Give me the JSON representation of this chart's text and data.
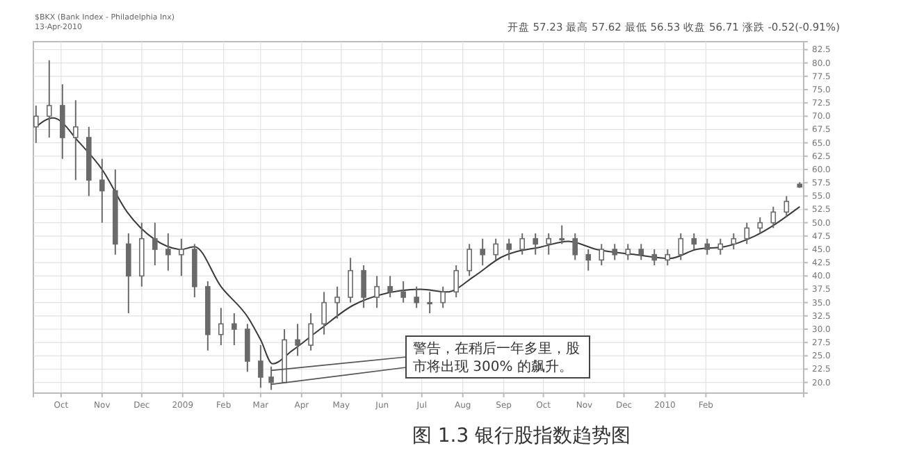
{
  "chart_data": {
    "type": "candlestick",
    "title": "图 1.3    银行股指数趋势图",
    "annotations": [
      "开盘 57.23  最高 57.62  最低 56.53  收盘 56.71  涨跌 -0.52(-0.91%)",
      "$BKX (Bank Index - Philadelphia Inx)",
      "13-Apr-2010",
      {
        "text": "警告，在稍后一年多里，股市将出现 300% 的飙升。",
        "x": "2009-03-06",
        "y": 18.6
      }
    ],
    "x": [
      "2008-09-12",
      "2008-09-22",
      "2008-10-02",
      "2008-10-12",
      "2008-10-22",
      "2008-11-01",
      "2008-11-11",
      "2008-11-21",
      "2008-12-01",
      "2008-12-11",
      "2008-12-21",
      "2008-12-31",
      "2009-01-10",
      "2009-01-20",
      "2009-01-30",
      "2009-02-09",
      "2009-02-19",
      "2009-03-01",
      "2009-03-09",
      "2009-03-19",
      "2009-03-29",
      "2009-04-08",
      "2009-04-18",
      "2009-04-28",
      "2009-05-08",
      "2009-05-18",
      "2009-05-28",
      "2009-06-07",
      "2009-06-17",
      "2009-06-27",
      "2009-07-07",
      "2009-07-17",
      "2009-07-27",
      "2009-08-06",
      "2009-08-16",
      "2009-08-26",
      "2009-09-05",
      "2009-09-15",
      "2009-09-25",
      "2009-10-05",
      "2009-10-15",
      "2009-10-25",
      "2009-11-04",
      "2009-11-14",
      "2009-11-24",
      "2009-12-04",
      "2009-12-14",
      "2009-12-24",
      "2010-01-03",
      "2010-01-13",
      "2010-01-23",
      "2010-02-02",
      "2010-02-12",
      "2010-02-22",
      "2010-03-04",
      "2010-03-14",
      "2010-03-24",
      "2010-04-03",
      "2010-04-13"
    ],
    "ohlc": [
      [
        68,
        72,
        65,
        70
      ],
      [
        70,
        80.5,
        66,
        72
      ],
      [
        72,
        76,
        62,
        66
      ],
      [
        66,
        73,
        58,
        68
      ],
      [
        66,
        68,
        55,
        58
      ],
      [
        58,
        62,
        50,
        56
      ],
      [
        56,
        60,
        44,
        46
      ],
      [
        46,
        48,
        33,
        40
      ],
      [
        40,
        50,
        38,
        47
      ],
      [
        47,
        50,
        42,
        45
      ],
      [
        45,
        48,
        41,
        44
      ],
      [
        44,
        47,
        40,
        45
      ],
      [
        45,
        46,
        36,
        38
      ],
      [
        38,
        39,
        26,
        29
      ],
      [
        29,
        34,
        27,
        31
      ],
      [
        31,
        33,
        27,
        30
      ],
      [
        30,
        31,
        22,
        24
      ],
      [
        24,
        27,
        19,
        21
      ],
      [
        21,
        23,
        18.6,
        20
      ],
      [
        20,
        30,
        20,
        28
      ],
      [
        28,
        31,
        25,
        27
      ],
      [
        27,
        33,
        26,
        31
      ],
      [
        31,
        37,
        29,
        35
      ],
      [
        35,
        38,
        32,
        36
      ],
      [
        36,
        43.4,
        35,
        41
      ],
      [
        41,
        42,
        34,
        36
      ],
      [
        36,
        40,
        34,
        38
      ],
      [
        38,
        40,
        36,
        37
      ],
      [
        37,
        39,
        35,
        36
      ],
      [
        36,
        38,
        34,
        35
      ],
      [
        35,
        37,
        33,
        35
      ],
      [
        35,
        38,
        34,
        37
      ],
      [
        37,
        42,
        36,
        41
      ],
      [
        41,
        46,
        40,
        45
      ],
      [
        45,
        47,
        42,
        44
      ],
      [
        44,
        47,
        43,
        46
      ],
      [
        46,
        47,
        43,
        45
      ],
      [
        45,
        48,
        44,
        47
      ],
      [
        47,
        48,
        44,
        46
      ],
      [
        46,
        48,
        44,
        47
      ],
      [
        47,
        49.5,
        46,
        47
      ],
      [
        47,
        48,
        43,
        44
      ],
      [
        44,
        45,
        41,
        43
      ],
      [
        43,
        46,
        42,
        45
      ],
      [
        45,
        46,
        43,
        44
      ],
      [
        44,
        46,
        43,
        45
      ],
      [
        45,
        46,
        43,
        44
      ],
      [
        44,
        45,
        42,
        43
      ],
      [
        43,
        45,
        42,
        44
      ],
      [
        44,
        48,
        43,
        47
      ],
      [
        47,
        48,
        45,
        46
      ],
      [
        46,
        47,
        44,
        45
      ],
      [
        45,
        47,
        44,
        46
      ],
      [
        46,
        48,
        45,
        47
      ],
      [
        47,
        50,
        46,
        49
      ],
      [
        49,
        51,
        48,
        50
      ],
      [
        50,
        53,
        49,
        52
      ],
      [
        52,
        55,
        51,
        54
      ],
      [
        57.23,
        57.62,
        56.53,
        56.71
      ]
    ],
    "color": "#6a6a6a",
    "series": [
      {
        "type": "line",
        "color": "#3a3a3a",
        "x": [
          "2008-09-12",
          "2008-09-25",
          "2008-10-15",
          "2008-11-01",
          "2008-11-20",
          "2008-12-10",
          "2008-12-31",
          "2009-01-10",
          "2009-01-30",
          "2009-02-20",
          "2009-03-01",
          "2009-03-10",
          "2009-03-25",
          "2009-04-15",
          "2009-05-10",
          "2009-05-31",
          "2009-06-30",
          "2009-07-20",
          "2009-08-10",
          "2009-08-30",
          "2009-09-30",
          "2009-10-20",
          "2009-11-10",
          "2009-12-10",
          "2010-01-05",
          "2010-01-25",
          "2010-02-15",
          "2010-03-10",
          "2010-04-13"
        ],
        "values": [
          68,
          69.7,
          65,
          60,
          52,
          47,
          45,
          45.5,
          38,
          32,
          28,
          23.5,
          26,
          30,
          34.5,
          36.5,
          37.5,
          37,
          40,
          43.5,
          45.5,
          46.5,
          45,
          44,
          43.3,
          45,
          45.5,
          47.5,
          53
        ]
      }
    ],
    "xlim": [
      "2008-09-10",
      "2010-04-16"
    ],
    "xticks": [
      {
        "value": "2008-10-01",
        "label": "Oct"
      },
      {
        "value": "2008-11-01",
        "label": "Nov"
      },
      {
        "value": "2008-12-01",
        "label": "Dec"
      },
      {
        "value": "2009-01-01",
        "label": "2009"
      },
      {
        "value": "2009-02-01",
        "label": "Feb"
      },
      {
        "value": "2009-03-01",
        "label": "Mar"
      },
      {
        "value": "2009-04-01",
        "label": "Apr"
      },
      {
        "value": "2009-05-01",
        "label": "May"
      },
      {
        "value": "2009-06-01",
        "label": "Jun"
      },
      {
        "value": "2009-07-01",
        "label": "Jul"
      },
      {
        "value": "2009-08-01",
        "label": "Aug"
      },
      {
        "value": "2009-09-01",
        "label": "Sep"
      },
      {
        "value": "2009-10-01",
        "label": "Oct"
      },
      {
        "value": "2009-11-01",
        "label": "Nov"
      },
      {
        "value": "2009-12-01",
        "label": "Dec"
      },
      {
        "value": "2010-01-01",
        "label": "2010"
      },
      {
        "value": "2010-02-01",
        "label": "Feb"
      }
    ],
    "ylim": [
      18,
      84
    ],
    "yticks": [
      {
        "value": 20,
        "label": "20.0"
      },
      {
        "value": 22.5,
        "label": "22.5"
      },
      {
        "value": 25,
        "label": "25.0"
      },
      {
        "value": 27.5,
        "label": "27.5"
      },
      {
        "value": 30,
        "label": "30.0"
      },
      {
        "value": 32.5,
        "label": "32.5"
      },
      {
        "value": 35,
        "label": "35.0"
      },
      {
        "value": 37.5,
        "label": "37.5"
      },
      {
        "value": 40,
        "label": "40.0"
      },
      {
        "value": 42.5,
        "label": "42.5"
      },
      {
        "value": 45,
        "label": "45.0"
      },
      {
        "value": 47.5,
        "label": "47.5"
      },
      {
        "value": 50,
        "label": "50.0"
      },
      {
        "value": 52.5,
        "label": "52.5"
      },
      {
        "value": 55,
        "label": "55.0"
      },
      {
        "value": 57.5,
        "label": "57.5"
      },
      {
        "value": 60,
        "label": "60.0"
      },
      {
        "value": 62.5,
        "label": "62.5"
      },
      {
        "value": 65,
        "label": "65.0"
      },
      {
        "value": 67.5,
        "label": "67.5"
      },
      {
        "value": 70,
        "label": "70.0"
      },
      {
        "value": 72.5,
        "label": "72.5"
      },
      {
        "value": 75,
        "label": "75.0"
      },
      {
        "value": 77.5,
        "label": "77.5"
      },
      {
        "value": 80,
        "label": "80.0"
      },
      {
        "value": 82.5,
        "label": "82.5"
      }
    ],
    "grid": true
  }
}
